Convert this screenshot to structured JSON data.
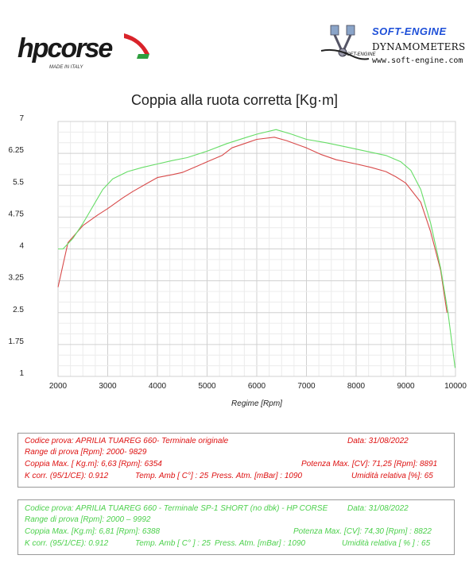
{
  "header": {
    "hp_logo_text": "hpcorse",
    "hp_made_in": "MADE IN ITALY",
    "se_brand": "SOFT-ENGINE",
    "se_logo_small": "SOFT-ENGINE",
    "se_subtitle": "DYNAMOMETERS",
    "se_website": "www.soft-engine.com",
    "colors": {
      "hp_red": "#d9232a",
      "hp_green": "#2e9e3e",
      "se_blue": "#1d4fd8"
    }
  },
  "chart_data": {
    "type": "line",
    "title": "Coppia alla ruota corretta [Kg·m]",
    "xlabel": "Regime [Rpm]",
    "ylabel": "",
    "xlim": [
      2000,
      10000
    ],
    "ylim": [
      1,
      7
    ],
    "xticks": [
      "2000",
      "3000",
      "4000",
      "5000",
      "6000",
      "7000",
      "8000",
      "9000",
      "10000"
    ],
    "yticks": [
      "1",
      "1.75",
      "2.5",
      "3.25",
      "4",
      "4.75",
      "5.5",
      "6.25",
      "7"
    ],
    "grid": true,
    "series": [
      {
        "color": "#d84a4a",
        "x": [
          2000,
          2200,
          2500,
          2800,
          3000,
          3300,
          3500,
          3800,
          4000,
          4300,
          4500,
          4800,
          5000,
          5300,
          5500,
          5800,
          6000,
          6354,
          6600,
          7000,
          7300,
          7600,
          8000,
          8300,
          8600,
          8800,
          9000,
          9300,
          9500,
          9700,
          9829
        ],
        "y": [
          3.1,
          4.15,
          4.55,
          4.8,
          4.95,
          5.2,
          5.35,
          5.55,
          5.68,
          5.75,
          5.8,
          5.95,
          6.05,
          6.2,
          6.38,
          6.5,
          6.58,
          6.63,
          6.55,
          6.38,
          6.22,
          6.1,
          6.0,
          5.92,
          5.82,
          5.7,
          5.55,
          5.1,
          4.4,
          3.5,
          2.5
        ]
      },
      {
        "color": "#66dd66",
        "x": [
          2000,
          2100,
          2300,
          2500,
          2700,
          2900,
          3100,
          3400,
          3700,
          4000,
          4300,
          4600,
          5000,
          5400,
          5800,
          6000,
          6388,
          6700,
          7000,
          7400,
          7800,
          8200,
          8600,
          8900,
          9100,
          9300,
          9500,
          9700,
          9850,
          9992
        ],
        "y": [
          4.0,
          4.0,
          4.25,
          4.6,
          5.0,
          5.4,
          5.65,
          5.82,
          5.92,
          6.0,
          6.08,
          6.15,
          6.3,
          6.48,
          6.63,
          6.7,
          6.81,
          6.7,
          6.58,
          6.5,
          6.4,
          6.3,
          6.2,
          6.05,
          5.85,
          5.4,
          4.6,
          3.55,
          2.5,
          1.2
        ]
      }
    ]
  },
  "info_red": {
    "line1_left": "Codice prova: APRILIA TUAREG 660- Terminale originale",
    "line1_right": "Data: 31/08/2022",
    "line2": "Range di prova [Rpm]: 2000- 9829",
    "line3_left": "Coppia Max. [ Kg.m]: 6,63 [Rpm]: 6354",
    "line3_right": "Potenza Max. [CV]: 71,25 [Rpm]: 8891",
    "line4_a": "K corr. (95/1/CE): 0.912",
    "line4_b": "Temp. Amb [ C°] : 25",
    "line4_c": "Press. Atm. [mBar] : 1090",
    "line4_d": "Umidità relativa [%]: 65"
  },
  "info_green": {
    "line1_left": "Codice prova: APRILIA TUAREG 660 - Terminale SP-1 SHORT (no dbk) - HP CORSE",
    "line1_right": "Data: 31/08/2022",
    "line2": "Range di prova [Rpm]: 2000 – 9992",
    "line3_left": "Coppia Max. [Kg.m]: 6,81 [Rpm]: 6388",
    "line3_right": "Potenza Max. [CV]: 74,30 [Rpm] : 8822",
    "line4_a": "K corr. (95/1/CE): 0.912",
    "line4_b": "Temp. Amb [ C° ] : 25",
    "line4_c": "Press. Atm. [mBar] : 1090",
    "line4_d": "Umidità relativa [ % ] : 65"
  }
}
